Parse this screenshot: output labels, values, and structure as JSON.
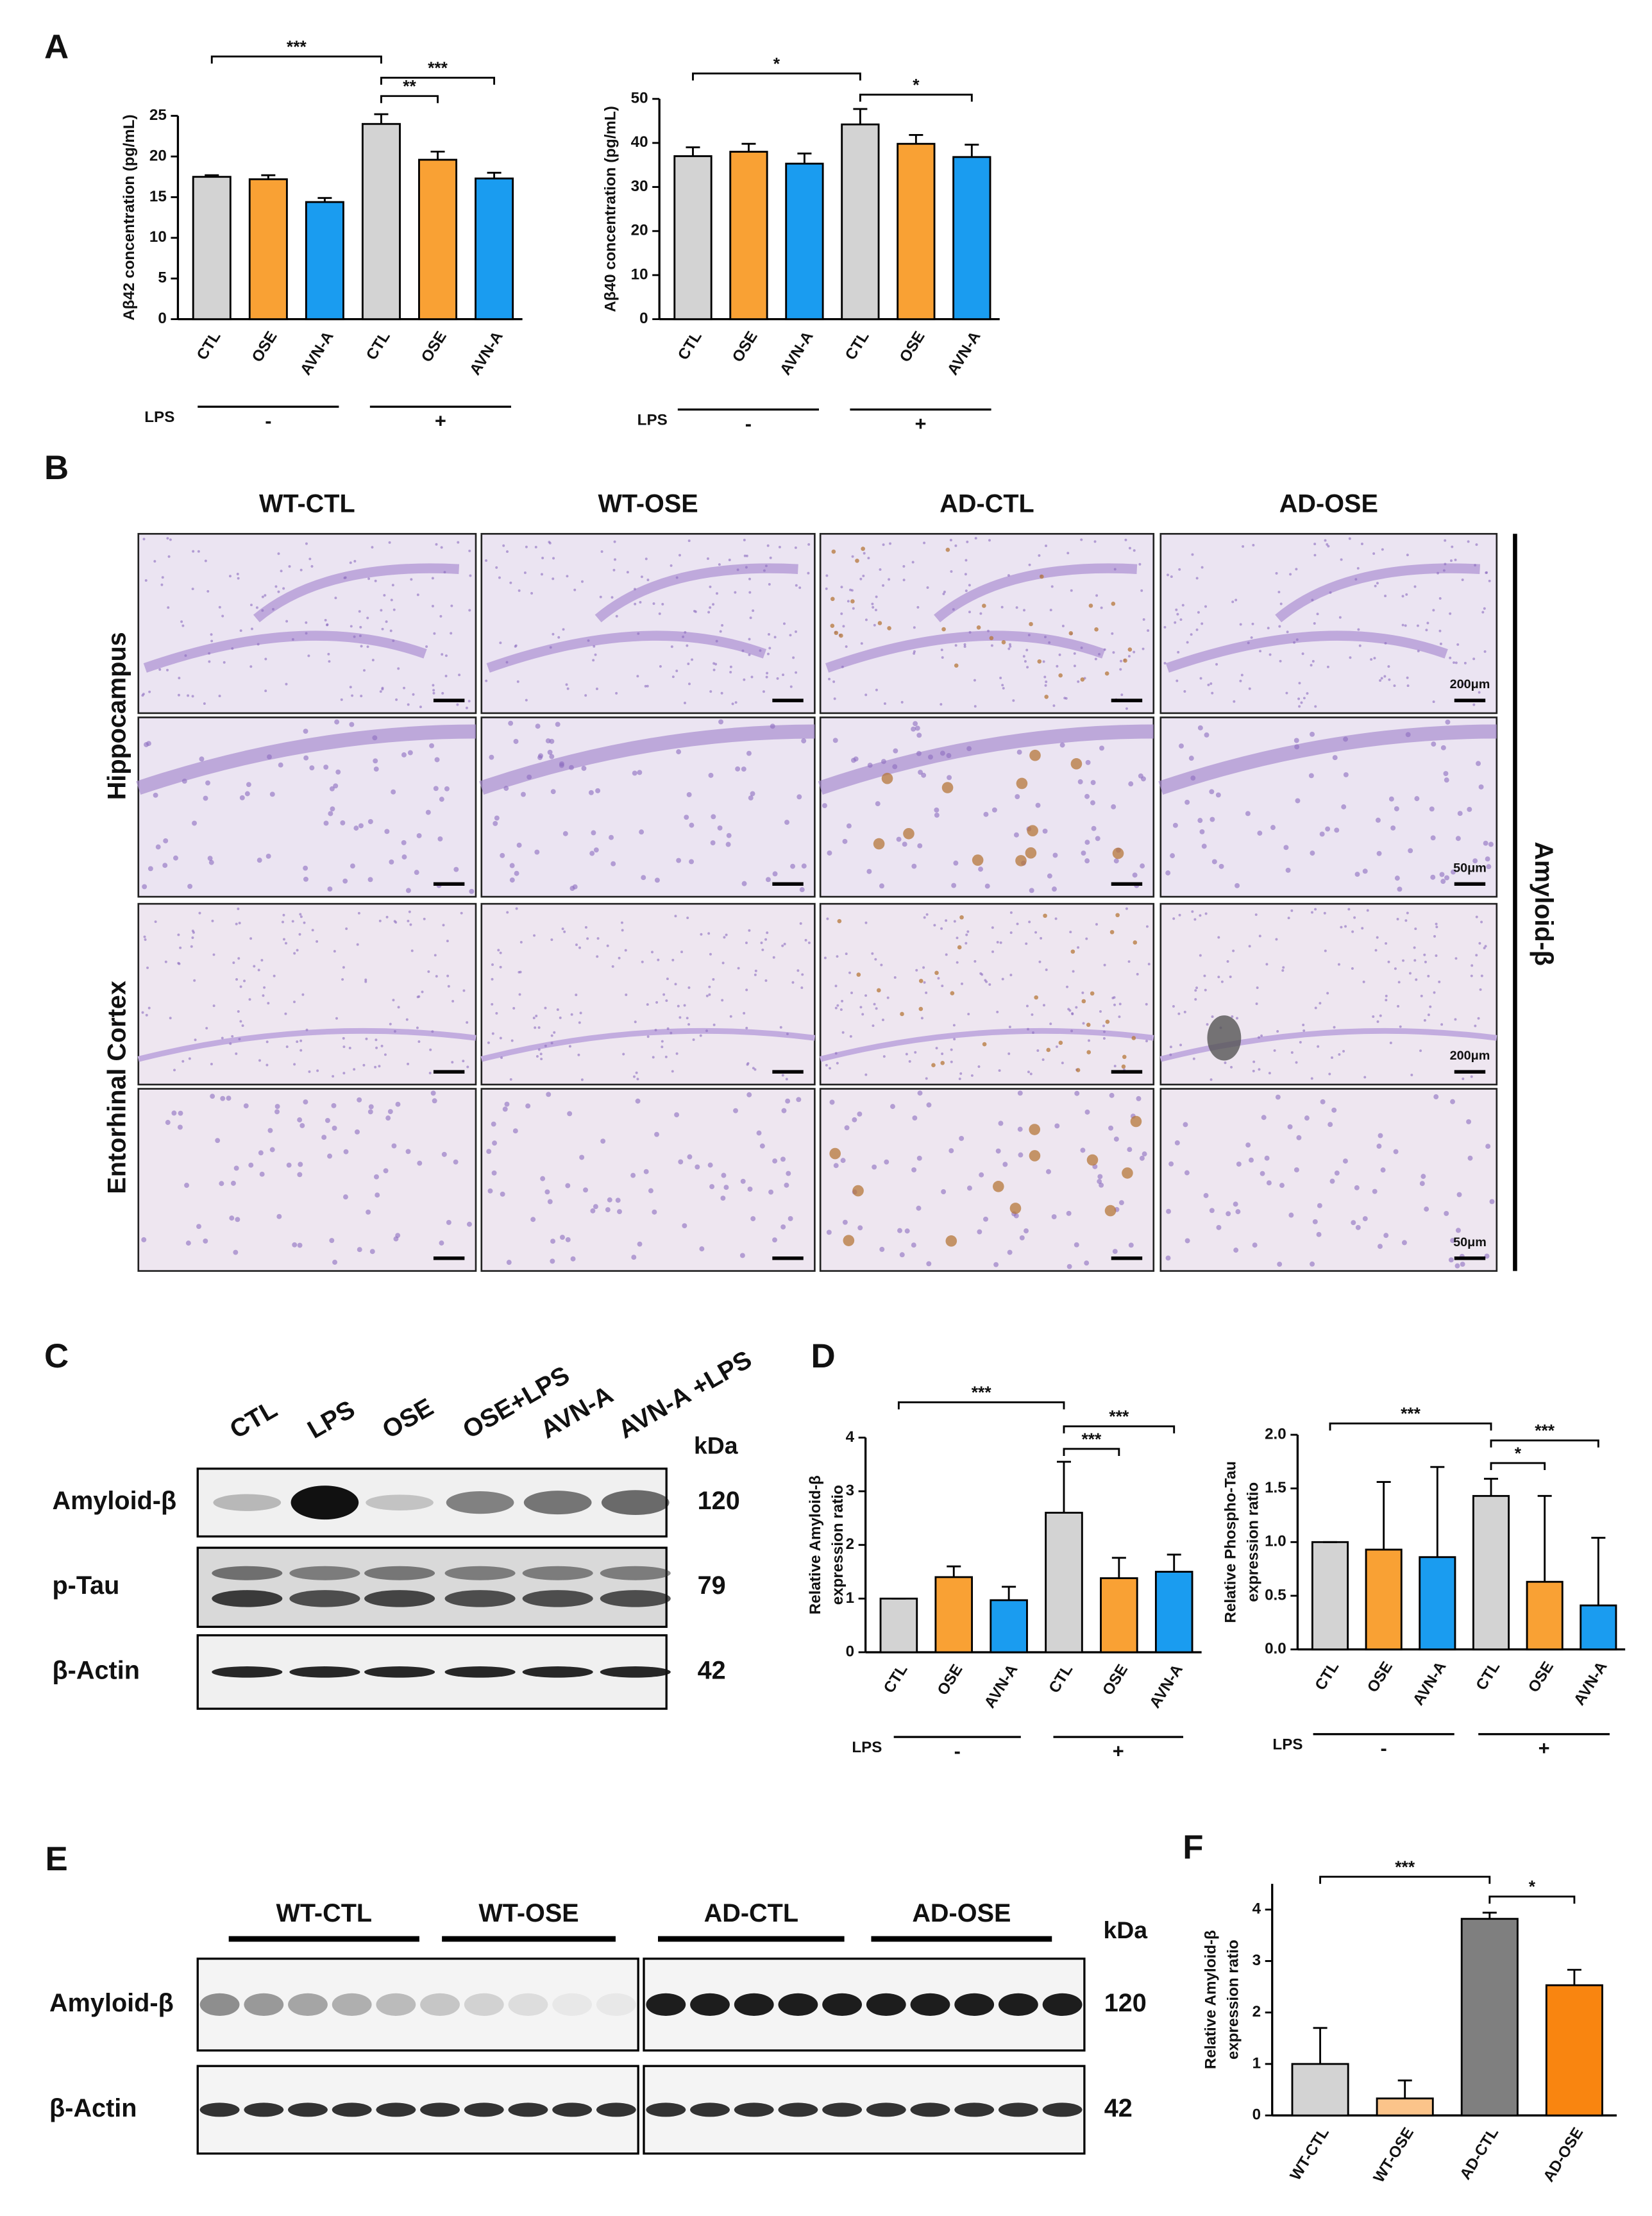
{
  "panel_letters": [
    "A",
    "B",
    "C",
    "D",
    "E",
    "F"
  ],
  "chart_data": [
    {
      "type": "bar",
      "ylabel": "Aβ42 concentration (pg/mL)",
      "categories": [
        "CTL",
        "OSE",
        "AVN-A",
        "CTL",
        "OSE",
        "AVN-A"
      ],
      "values": [
        17.5,
        17.2,
        14.4,
        24.0,
        19.6,
        17.3
      ],
      "errors": [
        0.2,
        0.5,
        0.5,
        1.2,
        1.0,
        0.7
      ],
      "colors": [
        "#d3d3d3",
        "#f9a134",
        "#1a9cf0",
        "#d3d3d3",
        "#f9a134",
        "#1a9cf0"
      ],
      "ylim": [
        0,
        25
      ],
      "yticks": [
        0,
        5,
        10,
        15,
        20,
        25
      ],
      "annotations": [
        "***",
        "**",
        "***"
      ],
      "group_label": "LPS",
      "groups": [
        "-",
        "+"
      ]
    },
    {
      "type": "bar",
      "ylabel": "Aβ40 concentration (pg/mL)",
      "categories": [
        "CTL",
        "OSE",
        "AVN-A",
        "CTL",
        "OSE",
        "AVN-A"
      ],
      "values": [
        37,
        38,
        35.3,
        44.2,
        39.8,
        36.8
      ],
      "errors": [
        2,
        1.8,
        2.3,
        3.5,
        2,
        2.8
      ],
      "colors": [
        "#d3d3d3",
        "#f9a134",
        "#1a9cf0",
        "#d3d3d3",
        "#f9a134",
        "#1a9cf0"
      ],
      "ylim": [
        0,
        50
      ],
      "yticks": [
        0,
        10,
        20,
        30,
        40,
        50
      ],
      "annotations": [
        "*",
        "*"
      ],
      "group_label": "LPS",
      "groups": [
        "-",
        "+"
      ]
    },
    {
      "type": "bar",
      "ylabel": [
        "Relative Amyloid-β",
        "expression ratio"
      ],
      "categories": [
        "CTL",
        "OSE",
        "AVN-A",
        "CTL",
        "OSE",
        "AVN-A"
      ],
      "values": [
        1,
        1.4,
        0.97,
        2.6,
        1.38,
        1.5
      ],
      "errors": [
        0,
        0.2,
        0.25,
        0.95,
        0.38,
        0.32
      ],
      "colors": [
        "#d3d3d3",
        "#f9a134",
        "#1a9cf0",
        "#d3d3d3",
        "#f9a134",
        "#1a9cf0"
      ],
      "ylim": [
        0,
        4
      ],
      "yticks": [
        0,
        1,
        2,
        3,
        4
      ],
      "annotations": [
        "***",
        "***",
        "***"
      ],
      "group_label": "LPS",
      "groups": [
        "-",
        "+"
      ]
    },
    {
      "type": "bar",
      "ylabel": [
        "Relative Phospho-Tau",
        "expression ratio"
      ],
      "categories": [
        "CTL",
        "OSE",
        "AVN-A",
        "CTL",
        "OSE",
        "AVN-A"
      ],
      "values": [
        1,
        0.93,
        0.86,
        1.43,
        0.63,
        0.41
      ],
      "errors": [
        0,
        0.63,
        0.84,
        0.16,
        0.8,
        0.63
      ],
      "colors": [
        "#d3d3d3",
        "#f9a134",
        "#1a9cf0",
        "#d3d3d3",
        "#f9a134",
        "#1a9cf0"
      ],
      "ylim": [
        0,
        2
      ],
      "yticks": [
        {
          "value": 0,
          "label": "0.0"
        },
        0.5,
        {
          "value": 1,
          "label": "1.0"
        },
        1.5,
        {
          "value": 2,
          "label": "2.0"
        }
      ],
      "annotations": [
        "***",
        "*",
        "***"
      ],
      "group_label": "LPS",
      "groups": [
        "-",
        "+"
      ]
    },
    {
      "type": "bar",
      "ylabel": [
        "Relative Amyloid-β",
        "expression ratio"
      ],
      "categories": [
        "WT-CTL",
        "WT-OSE",
        "AD-CTL",
        "AD-OSE"
      ],
      "values": [
        1.0,
        0.33,
        3.82,
        2.53
      ],
      "errors": [
        0.7,
        0.35,
        0.12,
        0.3
      ],
      "colors": [
        "#d3d3d3",
        "#fbc48a",
        "#7f7f7f",
        "#f98510"
      ],
      "ylim": [
        0,
        4.5
      ],
      "yticks": [
        0,
        1,
        2,
        3,
        4
      ],
      "annotations": [
        "***",
        "*"
      ]
    }
  ],
  "panel_b": {
    "columns": [
      "WT-CTL",
      "WT-OSE",
      "AD-CTL",
      "AD-OSE"
    ],
    "rows": [
      "Hippocampus",
      "Entorhinal Cortex"
    ],
    "stain": "Amyloid-β",
    "scale_bars": [
      "200μm",
      "50μm",
      "200μm",
      "50μm"
    ]
  },
  "panel_c": {
    "lanes": [
      "CTL",
      "LPS",
      "OSE",
      "OSE+LPS",
      "AVN-A",
      "AVN-A +LPS"
    ],
    "unit": "kDa",
    "blots": [
      {
        "label": "Amyloid-β",
        "size": 120
      },
      {
        "label": "p-Tau",
        "size": 79
      },
      {
        "label": "β-Actin",
        "size": 42
      }
    ]
  },
  "panel_e": {
    "groups": [
      "WT-CTL",
      "WT-OSE",
      "AD-CTL",
      "AD-OSE"
    ],
    "unit": "kDa",
    "blots": [
      {
        "label": "Amyloid-β",
        "size": 120
      },
      {
        "label": "β-Actin",
        "size": 42
      }
    ]
  }
}
